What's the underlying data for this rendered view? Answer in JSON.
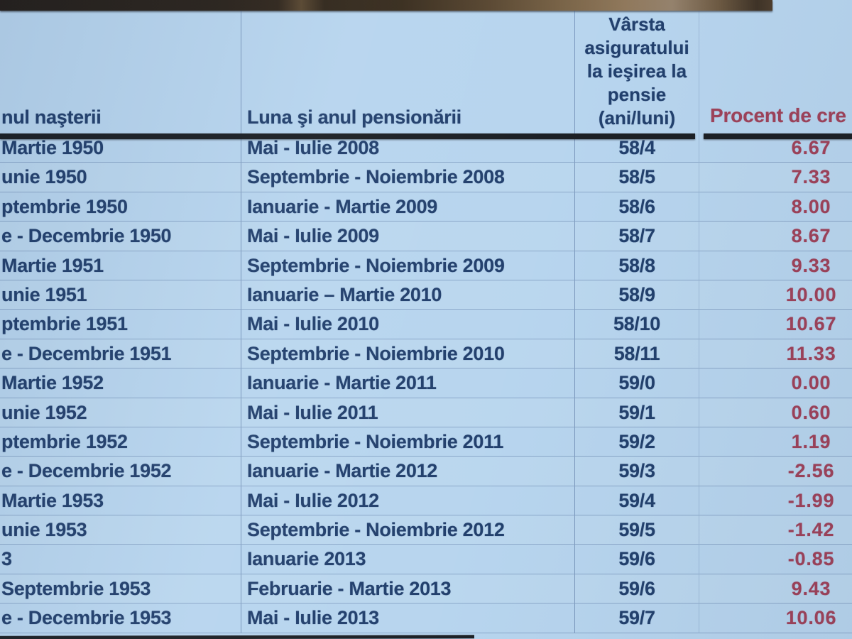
{
  "table": {
    "columns": [
      {
        "header": "nul naşterii"
      },
      {
        "header": "Luna şi anul pensionării"
      },
      {
        "header_lines": [
          "Vârsta",
          "asiguratului",
          "la ieşirea la",
          "pensie",
          "(ani/luni)"
        ]
      },
      {
        "header": "Procent de cre"
      }
    ],
    "rows": [
      {
        "birth": "Martie 1950",
        "retirement": "Mai - Iulie 2008",
        "age": "58/4",
        "percent": "6.67"
      },
      {
        "birth": "unie 1950",
        "retirement": "Septembrie - Noiembrie 2008",
        "age": "58/5",
        "percent": "7.33"
      },
      {
        "birth": "ptembrie 1950",
        "retirement": "Ianuarie - Martie 2009",
        "age": "58/6",
        "percent": "8.00"
      },
      {
        "birth": "e - Decembrie 1950",
        "retirement": "Mai - Iulie 2009",
        "age": "58/7",
        "percent": "8.67"
      },
      {
        "birth": "Martie 1951",
        "retirement": "Septembrie - Noiembrie 2009",
        "age": "58/8",
        "percent": "9.33"
      },
      {
        "birth": "unie 1951",
        "retirement": "Ianuarie – Martie 2010",
        "age": "58/9",
        "percent": "10.00"
      },
      {
        "birth": "ptembrie 1951",
        "retirement": "Mai - Iulie 2010",
        "age": "58/10",
        "percent": "10.67"
      },
      {
        "birth": "e - Decembrie 1951",
        "retirement": "Septembrie - Noiembrie 2010",
        "age": "58/11",
        "percent": "11.33"
      },
      {
        "birth": "Martie 1952",
        "retirement": "Ianuarie - Martie 2011",
        "age": "59/0",
        "percent": "0.00"
      },
      {
        "birth": "unie 1952",
        "retirement": "Mai - Iulie 2011",
        "age": "59/1",
        "percent": "0.60"
      },
      {
        "birth": "ptembrie 1952",
        "retirement": "Septembrie - Noiembrie 2011",
        "age": "59/2",
        "percent": "1.19"
      },
      {
        "birth": "e - Decembrie 1952",
        "retirement": "Ianuarie - Martie 2012",
        "age": "59/3",
        "percent": "-2.56"
      },
      {
        "birth": "Martie 1953",
        "retirement": "Mai - Iulie 2012",
        "age": "59/4",
        "percent": "-1.99"
      },
      {
        "birth": "unie 1953",
        "retirement": "Septembrie - Noiembrie 2012",
        "age": "59/5",
        "percent": "-1.42"
      },
      {
        "birth": "3",
        "retirement": "Ianuarie 2013",
        "age": "59/6",
        "percent": "-0.85"
      },
      {
        "birth": "Septembrie 1953",
        "retirement": "Februarie - Martie 2013",
        "age": "59/6",
        "percent": "9.43"
      },
      {
        "birth": "e - Decembrie 1953",
        "retirement": "Mai - Iulie 2013",
        "age": "59/7",
        "percent": "10.06"
      }
    ]
  },
  "colors": {
    "table_background": "#b6d4ee",
    "text_navy": "#1e3c6a",
    "text_maroon": "#9c3e56",
    "header_line": "#171b20"
  }
}
